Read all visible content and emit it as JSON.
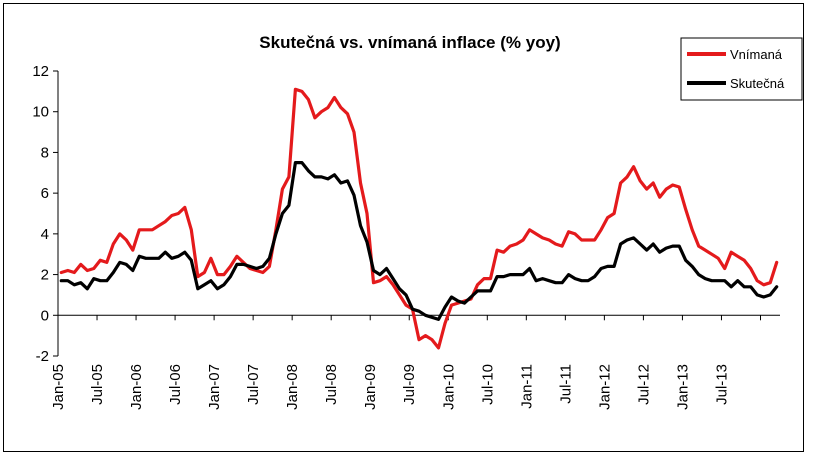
{
  "chart_data": {
    "type": "line",
    "title": "Skutečná vs. vnímaná inflace (% yoy)",
    "xlabel": "",
    "ylabel": "",
    "ylim": [
      -2,
      12
    ],
    "yticks": [
      -2,
      0,
      2,
      4,
      6,
      8,
      10,
      12
    ],
    "grid": false,
    "legend_position": "top-right",
    "x_tick_labels": [
      "Jan-05",
      "Jul-05",
      "Jan-06",
      "Jul-06",
      "Jan-07",
      "Jul-07",
      "Jan-08",
      "Jul-08",
      "Jan-09",
      "Jul-09",
      "Jan-10",
      "Jul-10",
      "Jan-11",
      "Jul-11",
      "Jan-12",
      "Jul-12",
      "Jan-13",
      "Jul-13"
    ],
    "x_start": "2005-01",
    "x_end": "2013-12",
    "series": [
      {
        "name": "Vnímaná",
        "color": "#e41a1c",
        "values": [
          2.1,
          2.2,
          2.1,
          2.5,
          2.2,
          2.3,
          2.7,
          2.6,
          3.5,
          4.0,
          3.7,
          3.2,
          4.2,
          4.2,
          4.2,
          4.4,
          4.6,
          4.9,
          5.0,
          5.3,
          4.2,
          1.9,
          2.1,
          2.8,
          2.0,
          2.0,
          2.4,
          2.9,
          2.6,
          2.3,
          2.2,
          2.1,
          2.4,
          4.2,
          6.2,
          6.8,
          11.1,
          11.0,
          10.6,
          9.7,
          10.0,
          10.2,
          10.7,
          10.2,
          9.9,
          9.0,
          6.5,
          5.0,
          1.6,
          1.7,
          1.9,
          1.5,
          1.0,
          0.5,
          0.3,
          -1.2,
          -1.0,
          -1.2,
          -1.6,
          -0.4,
          0.5,
          0.6,
          0.7,
          0.8,
          1.5,
          1.8,
          1.8,
          3.2,
          3.1,
          3.4,
          3.5,
          3.7,
          4.2,
          4.0,
          3.8,
          3.7,
          3.5,
          3.4,
          4.1,
          4.0,
          3.7,
          3.7,
          3.7,
          4.2,
          4.8,
          5.0,
          6.5,
          6.8,
          7.3,
          6.6,
          6.2,
          6.5,
          5.8,
          6.2,
          6.4,
          6.3,
          5.2,
          4.2,
          3.4,
          3.2,
          3.0,
          2.8,
          2.3,
          3.1,
          2.9,
          2.7,
          2.3,
          1.7,
          1.5,
          1.6,
          2.6
        ]
      },
      {
        "name": "Skutečná",
        "color": "#000000",
        "values": [
          1.7,
          1.7,
          1.5,
          1.6,
          1.3,
          1.8,
          1.7,
          1.7,
          2.1,
          2.6,
          2.5,
          2.2,
          2.9,
          2.8,
          2.8,
          2.8,
          3.1,
          2.8,
          2.9,
          3.1,
          2.7,
          1.3,
          1.5,
          1.7,
          1.3,
          1.5,
          1.9,
          2.5,
          2.5,
          2.4,
          2.3,
          2.4,
          2.8,
          4.0,
          5.0,
          5.4,
          7.5,
          7.5,
          7.1,
          6.8,
          6.8,
          6.7,
          6.9,
          6.5,
          6.6,
          5.9,
          4.4,
          3.6,
          2.2,
          2.0,
          2.3,
          1.8,
          1.3,
          1.0,
          0.3,
          0.2,
          0.0,
          -0.1,
          -0.2,
          0.4,
          0.9,
          0.7,
          0.6,
          0.9,
          1.2,
          1.2,
          1.2,
          1.9,
          1.9,
          2.0,
          2.0,
          2.0,
          2.3,
          1.7,
          1.8,
          1.7,
          1.6,
          1.6,
          2.0,
          1.8,
          1.7,
          1.7,
          1.9,
          2.3,
          2.4,
          2.4,
          3.5,
          3.7,
          3.8,
          3.5,
          3.2,
          3.5,
          3.1,
          3.3,
          3.4,
          3.4,
          2.7,
          2.4,
          2.0,
          1.8,
          1.7,
          1.7,
          1.7,
          1.4,
          1.7,
          1.4,
          1.4,
          1.0,
          0.9,
          1.0,
          1.4
        ]
      }
    ]
  }
}
